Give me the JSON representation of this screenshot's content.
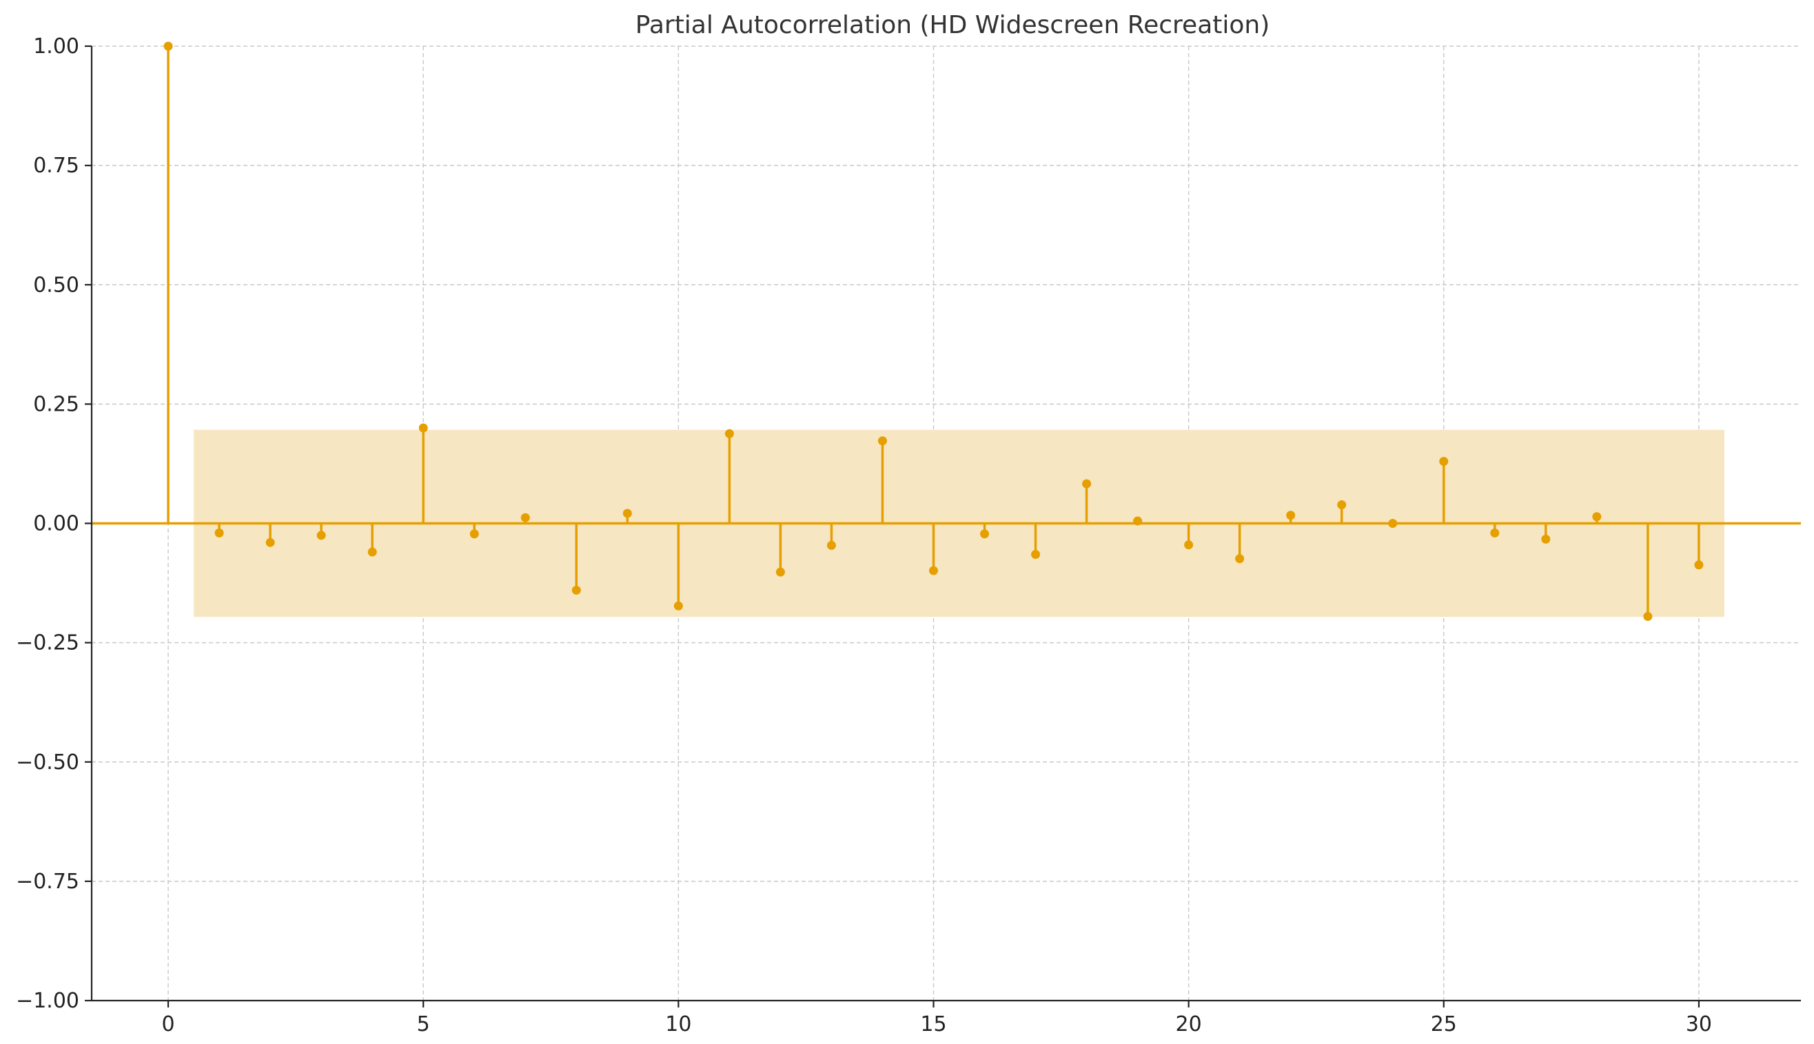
{
  "chart_data": {
    "type": "stem",
    "title": "Partial Autocorrelation (HD Widescreen Recreation)",
    "xlabel": "",
    "ylabel": "",
    "xlim": [
      -1.5,
      32
    ],
    "ylim": [
      -1.0,
      1.0
    ],
    "x_ticks": [
      0,
      5,
      10,
      15,
      20,
      25,
      30
    ],
    "x_tick_labels": [
      "0",
      "5",
      "10",
      "15",
      "20",
      "25",
      "30"
    ],
    "y_ticks": [
      -1.0,
      -0.75,
      -0.5,
      -0.25,
      0.0,
      0.25,
      0.5,
      0.75,
      1.0
    ],
    "y_tick_labels": [
      "−1.00",
      "−0.75",
      "−0.50",
      "−0.25",
      "0.00",
      "0.25",
      "0.50",
      "0.75",
      "1.00"
    ],
    "grid": true,
    "color": "#E69F00",
    "band_color": "#F7E6C2",
    "confidence_band": {
      "x_start": 0.5,
      "x_end": 30.5,
      "lower": -0.196,
      "upper": 0.196
    },
    "lags": [
      0,
      1,
      2,
      3,
      4,
      5,
      6,
      7,
      8,
      9,
      10,
      11,
      12,
      13,
      14,
      15,
      16,
      17,
      18,
      19,
      20,
      21,
      22,
      23,
      24,
      25,
      26,
      27,
      28,
      29,
      30
    ],
    "values": [
      1.0,
      -0.02,
      -0.04,
      -0.025,
      -0.06,
      0.2,
      -0.022,
      0.012,
      -0.14,
      0.021,
      -0.173,
      0.188,
      -0.102,
      -0.046,
      0.173,
      -0.099,
      -0.022,
      -0.065,
      0.083,
      0.005,
      -0.045,
      -0.074,
      0.017,
      0.039,
      0.0,
      0.13,
      -0.02,
      -0.033,
      0.014,
      -0.195,
      -0.087
    ]
  }
}
